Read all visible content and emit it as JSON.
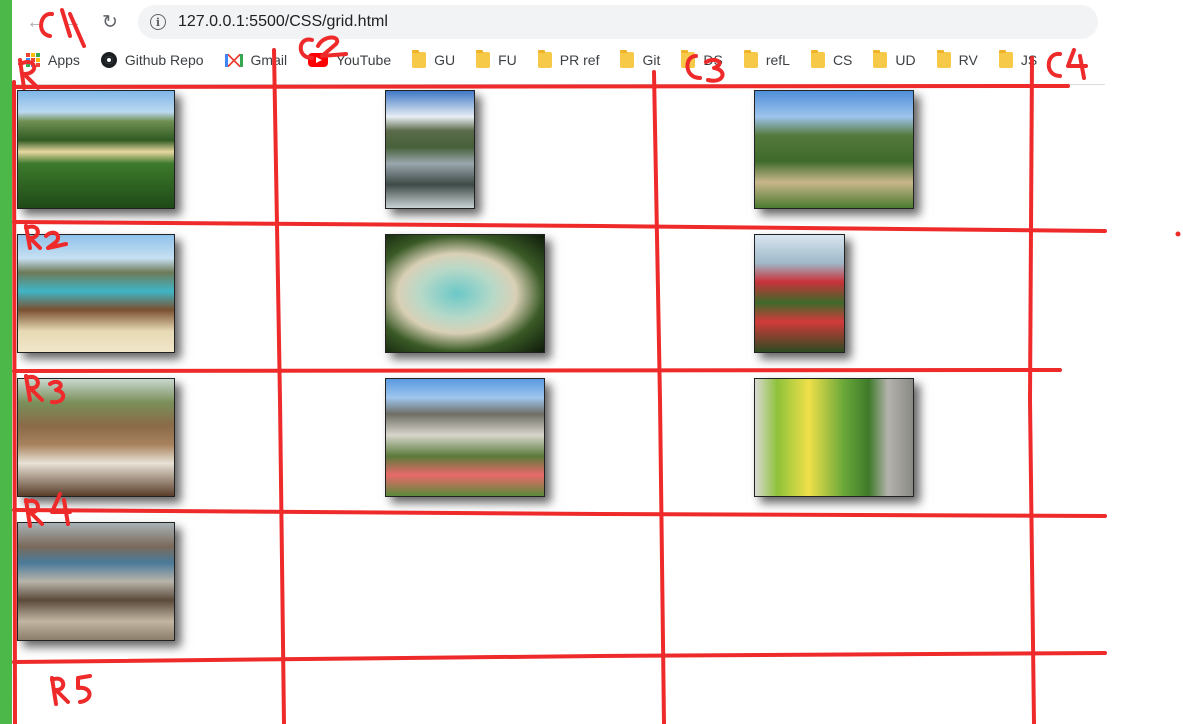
{
  "browser": {
    "url": "127.0.0.1:5500/CSS/grid.html",
    "nav": {
      "back_icon": "←",
      "forward_icon": "→",
      "reload_icon": "↻"
    },
    "bookmarks": [
      {
        "label": "Apps",
        "icon": "apps-icon"
      },
      {
        "label": "Github Repo",
        "icon": "github-icon"
      },
      {
        "label": "Gmail",
        "icon": "gmail-icon"
      },
      {
        "label": "YouTube",
        "icon": "youtube-icon"
      },
      {
        "label": "GU",
        "icon": "folder-icon"
      },
      {
        "label": "FU",
        "icon": "folder-icon"
      },
      {
        "label": "PR ref",
        "icon": "folder-icon"
      },
      {
        "label": "Git",
        "icon": "folder-icon"
      },
      {
        "label": "DS",
        "icon": "folder-icon"
      },
      {
        "label": "refL",
        "icon": "folder-icon"
      },
      {
        "label": "CS",
        "icon": "folder-icon"
      },
      {
        "label": "UD",
        "icon": "folder-icon"
      },
      {
        "label": "RV",
        "icon": "folder-icon"
      },
      {
        "label": "JS",
        "icon": "folder-icon"
      }
    ]
  },
  "gallery": {
    "images": [
      {
        "name": "beach-cove-photo",
        "subject": "beach cove with ferns"
      },
      {
        "name": "mountain-stream-photo",
        "subject": "glacier mountain stream"
      },
      {
        "name": "coastal-trail-photo",
        "subject": "coastal walking trail"
      },
      {
        "name": "longtail-boat-photo",
        "subject": "longtail boat on beach"
      },
      {
        "name": "rocky-beach-photo",
        "subject": "rocky beach through trees"
      },
      {
        "name": "red-flowers-photo",
        "subject": "red pohutukawa flowers"
      },
      {
        "name": "coffee-cafe-photo",
        "subject": "coffee cups at cafe"
      },
      {
        "name": "house-garden-photo",
        "subject": "house with flower garden"
      },
      {
        "name": "food-truck-photo",
        "subject": "green food truck"
      },
      {
        "name": "tuk-tuk-photo",
        "subject": "tuk tuk on street"
      }
    ]
  },
  "annotations": {
    "columns": [
      "C1",
      "C2",
      "C3",
      "C4"
    ],
    "rows": [
      "R1",
      "R2",
      "R3",
      "R4",
      "R5"
    ]
  },
  "colors": {
    "annotation": "#ee2a2a",
    "left_strip": "#4cb849"
  }
}
